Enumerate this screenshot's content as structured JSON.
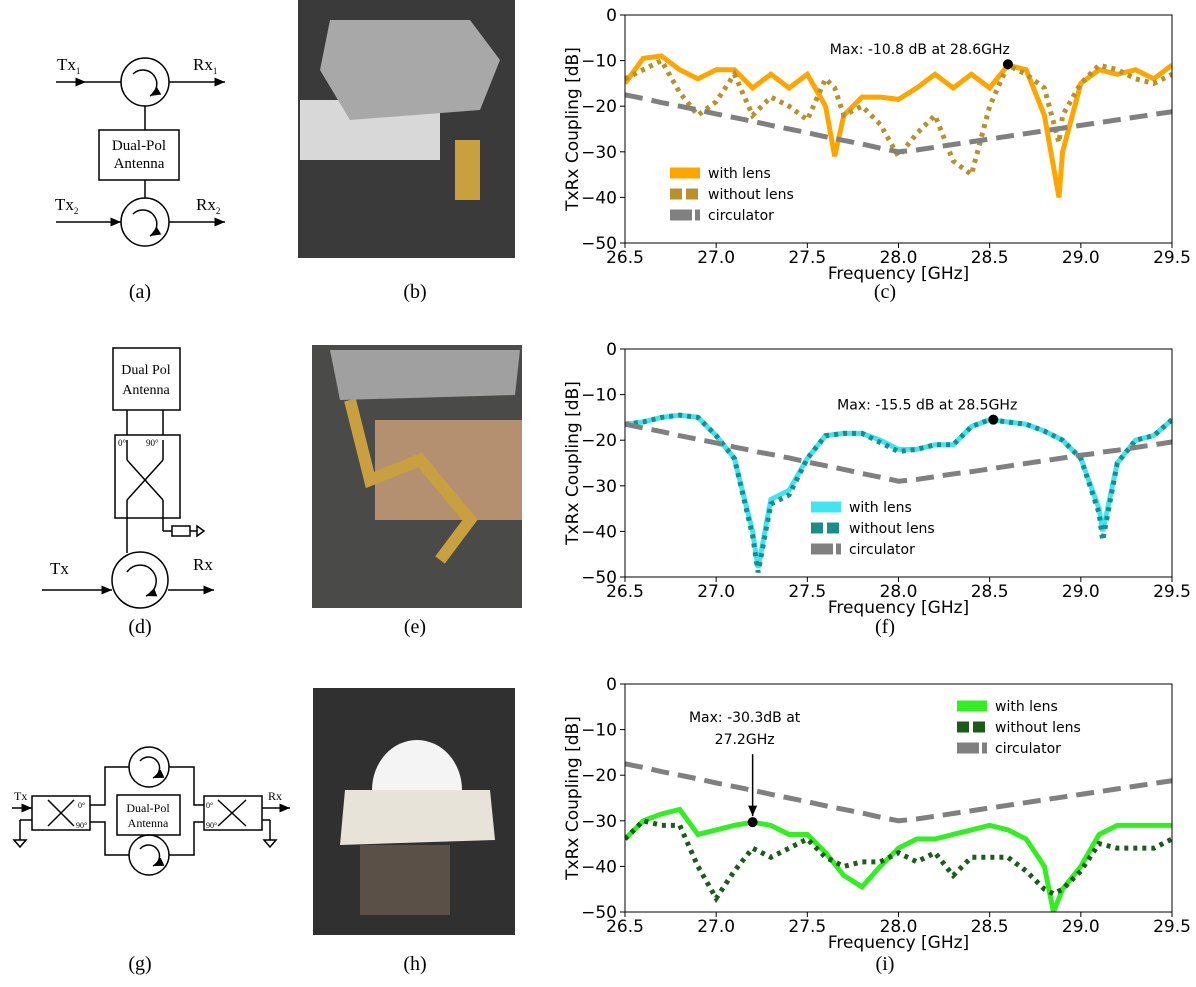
{
  "chart_data": [
    {
      "type": "line",
      "x": [
        26.5,
        26.6,
        26.7,
        26.8,
        26.9,
        27.0,
        27.1,
        27.2,
        27.3,
        27.4,
        27.5,
        27.6,
        27.65,
        27.7,
        27.8,
        27.9,
        28.0,
        28.1,
        28.2,
        28.3,
        28.4,
        28.5,
        28.6,
        28.7,
        28.8,
        28.88,
        28.9,
        29.0,
        29.1,
        29.2,
        29.3,
        29.4,
        29.5
      ],
      "series": [
        {
          "name": "with lens",
          "color": "#ffa500",
          "style": "solid",
          "values": [
            -15,
            -9.5,
            -9,
            -12,
            -14,
            -12,
            -12,
            -16,
            -13,
            -16,
            -13,
            -20,
            -31,
            -22,
            -18,
            -18,
            -18.5,
            -16,
            -13,
            -16,
            -13,
            -16,
            -11,
            -12,
            -22,
            -40,
            -30,
            -15,
            -12,
            -13,
            -12,
            -14,
            -11
          ]
        },
        {
          "name": "without lens",
          "color": "#b8902c",
          "style": "dotted",
          "values": [
            -14,
            -12,
            -10,
            -17,
            -22,
            -19,
            -13,
            -22,
            -18,
            -20,
            -23,
            -14,
            -16,
            -22,
            -20,
            -24,
            -31,
            -26,
            -22,
            -32,
            -35,
            -20,
            -11,
            -13,
            -16,
            -28,
            -22,
            -15,
            -11,
            -12,
            -14,
            -15,
            -13
          ]
        },
        {
          "name": "circulator",
          "color": "#808080",
          "style": "dashed",
          "values": [
            -17.5,
            -18.3,
            -19.2,
            -20,
            -20.8,
            -21.7,
            -22.5,
            -23.3,
            -24.2,
            -25,
            -25.8,
            -26.7,
            -27.1,
            -27.5,
            -28.3,
            -29.2,
            -30,
            -29.6,
            -29,
            -28.4,
            -27.8,
            -27.2,
            -26.6,
            -26,
            -25.4,
            -24.9,
            -24.8,
            -24.2,
            -23.6,
            -23,
            -22.4,
            -21.8,
            -21.2
          ]
        }
      ],
      "xlim": [
        26.5,
        29.5
      ],
      "ylim": [
        -50,
        0
      ],
      "xticks": [
        26.5,
        {
          "value": 27,
          "label": "27.0"
        },
        27.5,
        {
          "value": 28,
          "label": "28.0"
        },
        28.5,
        {
          "value": 29,
          "label": "29.0"
        },
        29.5
      ],
      "yticks": [
        0,
        {
          "value": -10,
          "label": "−10"
        },
        {
          "value": -20,
          "label": "−20"
        },
        {
          "value": -30,
          "label": "−30"
        },
        {
          "value": -40,
          "label": "−40"
        },
        {
          "value": -50,
          "label": "−50"
        }
      ],
      "xlabel": "Frequency [GHz]",
      "ylabel": "TxRx Coupling [dB]",
      "legend": "lower left",
      "annotation": {
        "text": [
          "Max: -10.8 dB at 28.6GHz"
        ],
        "x": 28.6,
        "y": -10.8
      }
    },
    {
      "type": "line",
      "x": [
        26.5,
        26.6,
        26.7,
        26.8,
        26.9,
        27.0,
        27.1,
        27.2,
        27.23,
        27.3,
        27.4,
        27.5,
        27.6,
        27.7,
        27.8,
        27.9,
        28.0,
        28.1,
        28.2,
        28.3,
        28.4,
        28.5,
        28.6,
        28.7,
        28.8,
        28.9,
        29.0,
        29.1,
        29.12,
        29.2,
        29.3,
        29.4,
        29.5
      ],
      "series": [
        {
          "name": "with lens",
          "color": "#3fe6f2",
          "style": "solid",
          "values": [
            -16.5,
            -16,
            -15,
            -14.5,
            -15,
            -19,
            -24,
            -40,
            -48,
            -33,
            -31,
            -24,
            -19,
            -18.5,
            -18.5,
            -20,
            -22,
            -22,
            -21,
            -21,
            -17,
            -15.5,
            -16,
            -16.5,
            -18,
            -20,
            -24,
            -35,
            -40,
            -25,
            -20,
            -19,
            -15.5
          ]
        },
        {
          "name": "without lens",
          "color": "#1a8c8c",
          "style": "dotted",
          "values": [
            -16.5,
            -16,
            -15,
            -14.5,
            -15,
            -19,
            -24,
            -41,
            -49,
            -34,
            -32,
            -24,
            -19,
            -18.5,
            -18.5,
            -20.5,
            -22.5,
            -22,
            -21,
            -21,
            -17,
            -15.5,
            -16,
            -16.5,
            -18,
            -20,
            -24,
            -36,
            -42,
            -25,
            -20,
            -19,
            -15.5
          ]
        },
        {
          "name": "circulator",
          "color": "#808080",
          "style": "dashed",
          "values": [
            -16.5,
            -17.3,
            -18.1,
            -19,
            -19.8,
            -20.6,
            -21.5,
            -22.3,
            -22.6,
            -23.1,
            -23.9,
            -24.8,
            -25.6,
            -26.4,
            -27.3,
            -28.1,
            -29,
            -28.6,
            -28,
            -27.4,
            -26.9,
            -26.3,
            -25.7,
            -25.1,
            -24.5,
            -23.9,
            -23.3,
            -22.8,
            -22.6,
            -22.2,
            -21.6,
            -21,
            -20.4
          ]
        }
      ],
      "xlim": [
        26.5,
        29.5
      ],
      "ylim": [
        -50,
        0
      ],
      "xticks": [
        26.5,
        {
          "value": 27,
          "label": "27.0"
        },
        27.5,
        {
          "value": 28,
          "label": "28.0"
        },
        28.5,
        {
          "value": 29,
          "label": "29.0"
        },
        29.5
      ],
      "yticks": [
        0,
        {
          "value": -10,
          "label": "−10"
        },
        {
          "value": -20,
          "label": "−20"
        },
        {
          "value": -30,
          "label": "−30"
        },
        {
          "value": -40,
          "label": "−40"
        },
        {
          "value": -50,
          "label": "−50"
        }
      ],
      "xlabel": "Frequency [GHz]",
      "ylabel": "TxRx Coupling [dB]",
      "legend": "lower center",
      "annotation": {
        "text": [
          "Max: -15.5 dB at 28.5GHz"
        ],
        "x": 28.52,
        "y": -15.5
      }
    },
    {
      "type": "line",
      "x": [
        26.5,
        26.6,
        26.7,
        26.8,
        26.9,
        27.0,
        27.1,
        27.2,
        27.3,
        27.4,
        27.5,
        27.6,
        27.7,
        27.8,
        27.9,
        28.0,
        28.1,
        28.2,
        28.3,
        28.4,
        28.5,
        28.6,
        28.7,
        28.8,
        28.85,
        28.9,
        29.0,
        29.1,
        29.2,
        29.3,
        29.4,
        29.5
      ],
      "series": [
        {
          "name": "with lens",
          "color": "#33ee22",
          "style": "solid",
          "values": [
            -34,
            -30,
            -28.5,
            -27.5,
            -33,
            -32,
            -31,
            -30.3,
            -31,
            -33,
            -33,
            -37,
            -42,
            -44.5,
            -40,
            -36,
            -34,
            -34,
            -33,
            -32,
            -31,
            -32,
            -34,
            -40,
            -50,
            -45,
            -40,
            -33,
            -31,
            -31,
            -31,
            -31
          ]
        },
        {
          "name": "without lens",
          "color": "#1a5c1a",
          "style": "dotted",
          "values": [
            -34,
            -30,
            -31,
            -31,
            -40,
            -47,
            -41,
            -36,
            -38,
            -36,
            -34,
            -38,
            -40,
            -39,
            -39,
            -37,
            -39,
            -37,
            -42,
            -38,
            -38,
            -38,
            -41,
            -45,
            -46,
            -45,
            -41,
            -35,
            -36,
            -36,
            -36,
            -34
          ]
        },
        {
          "name": "circulator",
          "color": "#808080",
          "style": "dashed",
          "values": [
            -17.5,
            -18.3,
            -19.2,
            -20,
            -20.8,
            -21.7,
            -22.5,
            -23.3,
            -24.2,
            -25,
            -25.8,
            -26.7,
            -27.5,
            -28.3,
            -29.2,
            -30,
            -29.6,
            -29,
            -28.4,
            -27.8,
            -27.2,
            -26.6,
            -26,
            -25.4,
            -25.1,
            -24.8,
            -24.2,
            -23.6,
            -23,
            -22.4,
            -21.8,
            -21.2
          ]
        }
      ],
      "xlim": [
        26.5,
        29.5
      ],
      "ylim": [
        -50,
        0
      ],
      "xticks": [
        26.5,
        {
          "value": 27,
          "label": "27.0"
        },
        27.5,
        {
          "value": 28,
          "label": "28.0"
        },
        28.5,
        {
          "value": 29,
          "label": "29.0"
        },
        29.5
      ],
      "yticks": [
        0,
        {
          "value": -10,
          "label": "−10"
        },
        {
          "value": -20,
          "label": "−20"
        },
        {
          "value": -30,
          "label": "−30"
        },
        {
          "value": -40,
          "label": "−40"
        },
        {
          "value": -50,
          "label": "−50"
        }
      ],
      "xlabel": "Frequency [GHz]",
      "ylabel": "TxRx Coupling [dB]",
      "legend": "upper right",
      "annotation": {
        "text": [
          "Max: -30.3dB at",
          "27.2GHz"
        ],
        "x": 27.2,
        "y": -30.3
      }
    }
  ],
  "captions": [
    "(a)",
    "(b)",
    "(c)",
    "(d)",
    "(e)",
    "(f)",
    "(g)",
    "(h)",
    "(i)"
  ],
  "diagrams": {
    "a": {
      "tx1": [
        "Tx",
        "1"
      ],
      "rx1": [
        "Rx",
        "1"
      ],
      "tx2": [
        "Tx",
        "2"
      ],
      "rx2": [
        "Rx",
        "2"
      ],
      "antenna": [
        "Dual-Pol",
        "Antenna"
      ]
    },
    "d": {
      "antenna": [
        "Dual Pol",
        "Antenna"
      ],
      "port0": "0°",
      "port90": "90°",
      "tx": "Tx",
      "rx": "Rx"
    },
    "g": {
      "tx": "Tx",
      "rx": "Rx",
      "antenna": [
        "Dual-Pol",
        "Antenna"
      ],
      "left0": "0°",
      "left90": "90°",
      "right0": "0°",
      "right90": "90°"
    }
  }
}
